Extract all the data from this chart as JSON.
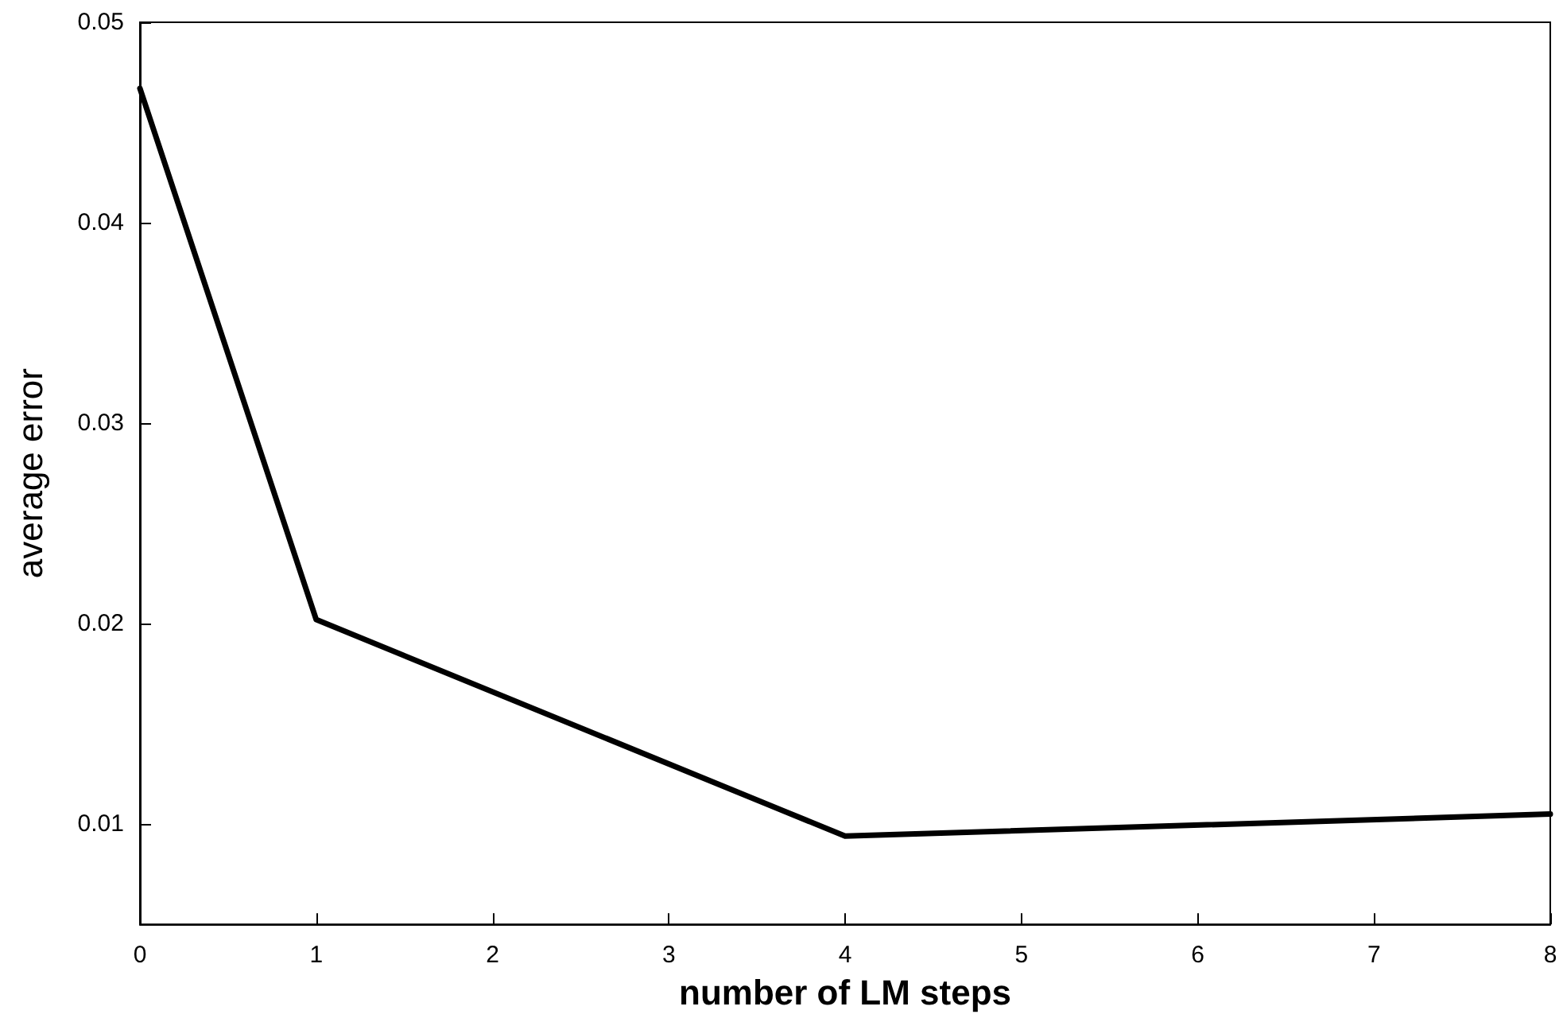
{
  "chart_data": {
    "type": "line",
    "xlabel": "number of LM steps",
    "ylabel": "average error",
    "x": [
      0,
      1,
      4,
      8
    ],
    "series": [
      {
        "color": "#000000",
        "values": [
          0.0467,
          0.0202,
          0.0094,
          0.0105
        ]
      }
    ],
    "xlim": [
      0,
      8
    ],
    "xticks": [
      0,
      1,
      2,
      3,
      4,
      5,
      6,
      7,
      8
    ],
    "ylim": [
      0.005,
      0.05
    ],
    "yticks": [
      0.01,
      0.02,
      0.03,
      0.04,
      0.05
    ],
    "grid": false,
    "marker": "none",
    "line_style": "solid"
  }
}
